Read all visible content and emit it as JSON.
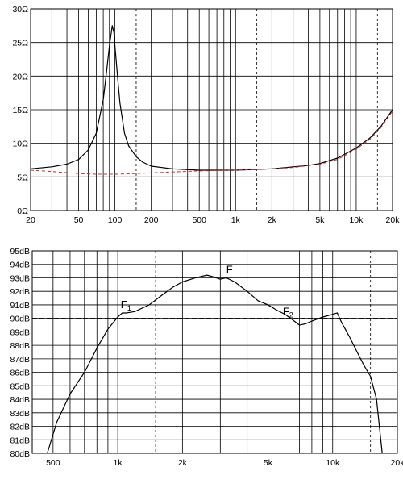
{
  "chart_data": [
    {
      "type": "line",
      "x_scale": "log",
      "xlim": [
        20,
        20000
      ],
      "ylim": [
        0,
        30
      ],
      "grid": true,
      "x_ticks": [
        {
          "value": 20,
          "label": "20"
        },
        {
          "value": 50,
          "label": "50"
        },
        {
          "value": 100,
          "label": "100"
        },
        {
          "value": 200,
          "label": "200"
        },
        {
          "value": 500,
          "label": "500"
        },
        {
          "value": 1000,
          "label": "1k"
        },
        {
          "value": 2000,
          "label": "2k"
        },
        {
          "value": 5000,
          "label": "5k"
        },
        {
          "value": 10000,
          "label": "10k"
        },
        {
          "value": 20000,
          "label": "20k"
        }
      ],
      "x_grid_values": [
        30,
        40,
        50,
        60,
        70,
        80,
        90,
        100,
        200,
        300,
        400,
        500,
        600,
        700,
        800,
        900,
        1000,
        2000,
        3000,
        4000,
        5000,
        6000,
        7000,
        8000,
        9000,
        10000
      ],
      "x_grid_dashed": [
        150,
        1500,
        15000
      ],
      "y_ticks": [
        {
          "value": 0,
          "label": "0Ω"
        },
        {
          "value": 5,
          "label": "5Ω"
        },
        {
          "value": 10,
          "label": "10Ω"
        },
        {
          "value": 15,
          "label": "15Ω"
        },
        {
          "value": 20,
          "label": "20Ω"
        },
        {
          "value": 25,
          "label": "25Ω"
        },
        {
          "value": 30,
          "label": "30Ω"
        }
      ],
      "series": [
        {
          "color": "#000000",
          "style": "solid",
          "x": [
            20,
            30,
            40,
            50,
            60,
            70,
            80,
            85,
            90,
            95,
            98,
            100,
            105,
            110,
            120,
            130,
            150,
            170,
            200,
            300,
            500,
            700,
            1000,
            2000,
            3000,
            4000,
            5000,
            7000,
            10000,
            13000,
            16000,
            20000
          ],
          "y": [
            6.2,
            6.5,
            6.9,
            7.6,
            9.0,
            11.5,
            16.5,
            20.5,
            24.5,
            27.5,
            26.5,
            24.5,
            20.0,
            16.0,
            11.5,
            9.6,
            8.0,
            7.2,
            6.6,
            6.2,
            6.0,
            6.0,
            6.0,
            6.2,
            6.5,
            6.7,
            7.0,
            7.8,
            9.3,
            10.8,
            12.5,
            15.0
          ]
        },
        {
          "color": "#cc2a2a",
          "style": "dashed",
          "x": [
            20,
            30,
            50,
            70,
            100,
            200,
            500,
            1000,
            2000,
            3000,
            5000,
            7000,
            10000,
            13000,
            16000,
            20000
          ],
          "y": [
            6.0,
            5.8,
            5.5,
            5.4,
            5.4,
            5.6,
            5.9,
            6.0,
            6.2,
            6.4,
            6.9,
            7.6,
            9.1,
            10.6,
            12.3,
            14.8
          ]
        }
      ]
    },
    {
      "type": "line",
      "x_scale": "log",
      "xlim": [
        400,
        20000
      ],
      "ylim": [
        80,
        95
      ],
      "grid": true,
      "x_ticks": [
        {
          "value": 500,
          "label": "500"
        },
        {
          "value": 1000,
          "label": "1k"
        },
        {
          "value": 2000,
          "label": "2k"
        },
        {
          "value": 5000,
          "label": "5k"
        },
        {
          "value": 10000,
          "label": "10k"
        },
        {
          "value": 20000,
          "label": "20k"
        }
      ],
      "x_grid_values": [
        500,
        600,
        700,
        800,
        900,
        1000,
        2000,
        3000,
        4000,
        5000,
        6000,
        7000,
        8000,
        9000,
        10000
      ],
      "x_grid_dashed": [
        1500,
        15000
      ],
      "y_ticks": [
        {
          "value": 80,
          "label": "80dB"
        },
        {
          "value": 81,
          "label": "81dB"
        },
        {
          "value": 82,
          "label": "82dB"
        },
        {
          "value": 83,
          "label": "83dB"
        },
        {
          "value": 84,
          "label": "84dB"
        },
        {
          "value": 85,
          "label": "85dB"
        },
        {
          "value": 86,
          "label": "86dB"
        },
        {
          "value": 87,
          "label": "87dB"
        },
        {
          "value": 88,
          "label": "88dB"
        },
        {
          "value": 89,
          "label": "89dB"
        },
        {
          "value": 90,
          "label": "90dB"
        },
        {
          "value": 91,
          "label": "91dB"
        },
        {
          "value": 92,
          "label": "92dB"
        },
        {
          "value": 93,
          "label": "93dB"
        },
        {
          "value": 94,
          "label": "94dB"
        },
        {
          "value": 95,
          "label": "95dB"
        }
      ],
      "reference_line": {
        "y": 90,
        "style": "dashed"
      },
      "series": [
        {
          "color": "#000000",
          "style": "solid",
          "x": [
            470,
            520,
            600,
            700,
            800,
            900,
            1000,
            1050,
            1100,
            1200,
            1400,
            1600,
            1800,
            2000,
            2300,
            2600,
            2750,
            3000,
            3200,
            3500,
            4000,
            4500,
            5000,
            5500,
            6000,
            6500,
            7000,
            7500,
            8000,
            9000,
            10000,
            10500,
            11000,
            12000,
            13000,
            14000,
            15000,
            16000,
            17000
          ],
          "y": [
            80.0,
            82.3,
            84.4,
            86.0,
            87.8,
            89.2,
            90.1,
            90.4,
            90.4,
            90.5,
            91.0,
            91.7,
            92.3,
            92.7,
            93.0,
            93.2,
            93.1,
            92.9,
            93.0,
            92.7,
            92.0,
            91.3,
            91.0,
            90.6,
            90.3,
            89.9,
            89.5,
            89.6,
            89.8,
            90.1,
            90.3,
            90.4,
            89.7,
            88.6,
            87.5,
            86.5,
            85.7,
            84.0,
            80.0
          ]
        }
      ],
      "annotations": [
        {
          "label": "F",
          "sub": "1",
          "x": 1050,
          "y": 90.4
        },
        {
          "label": "F",
          "sub": "",
          "x": 3200,
          "y": 93.0
        },
        {
          "label": "F",
          "sub": "2",
          "x": 6500,
          "y": 89.9
        }
      ]
    }
  ]
}
